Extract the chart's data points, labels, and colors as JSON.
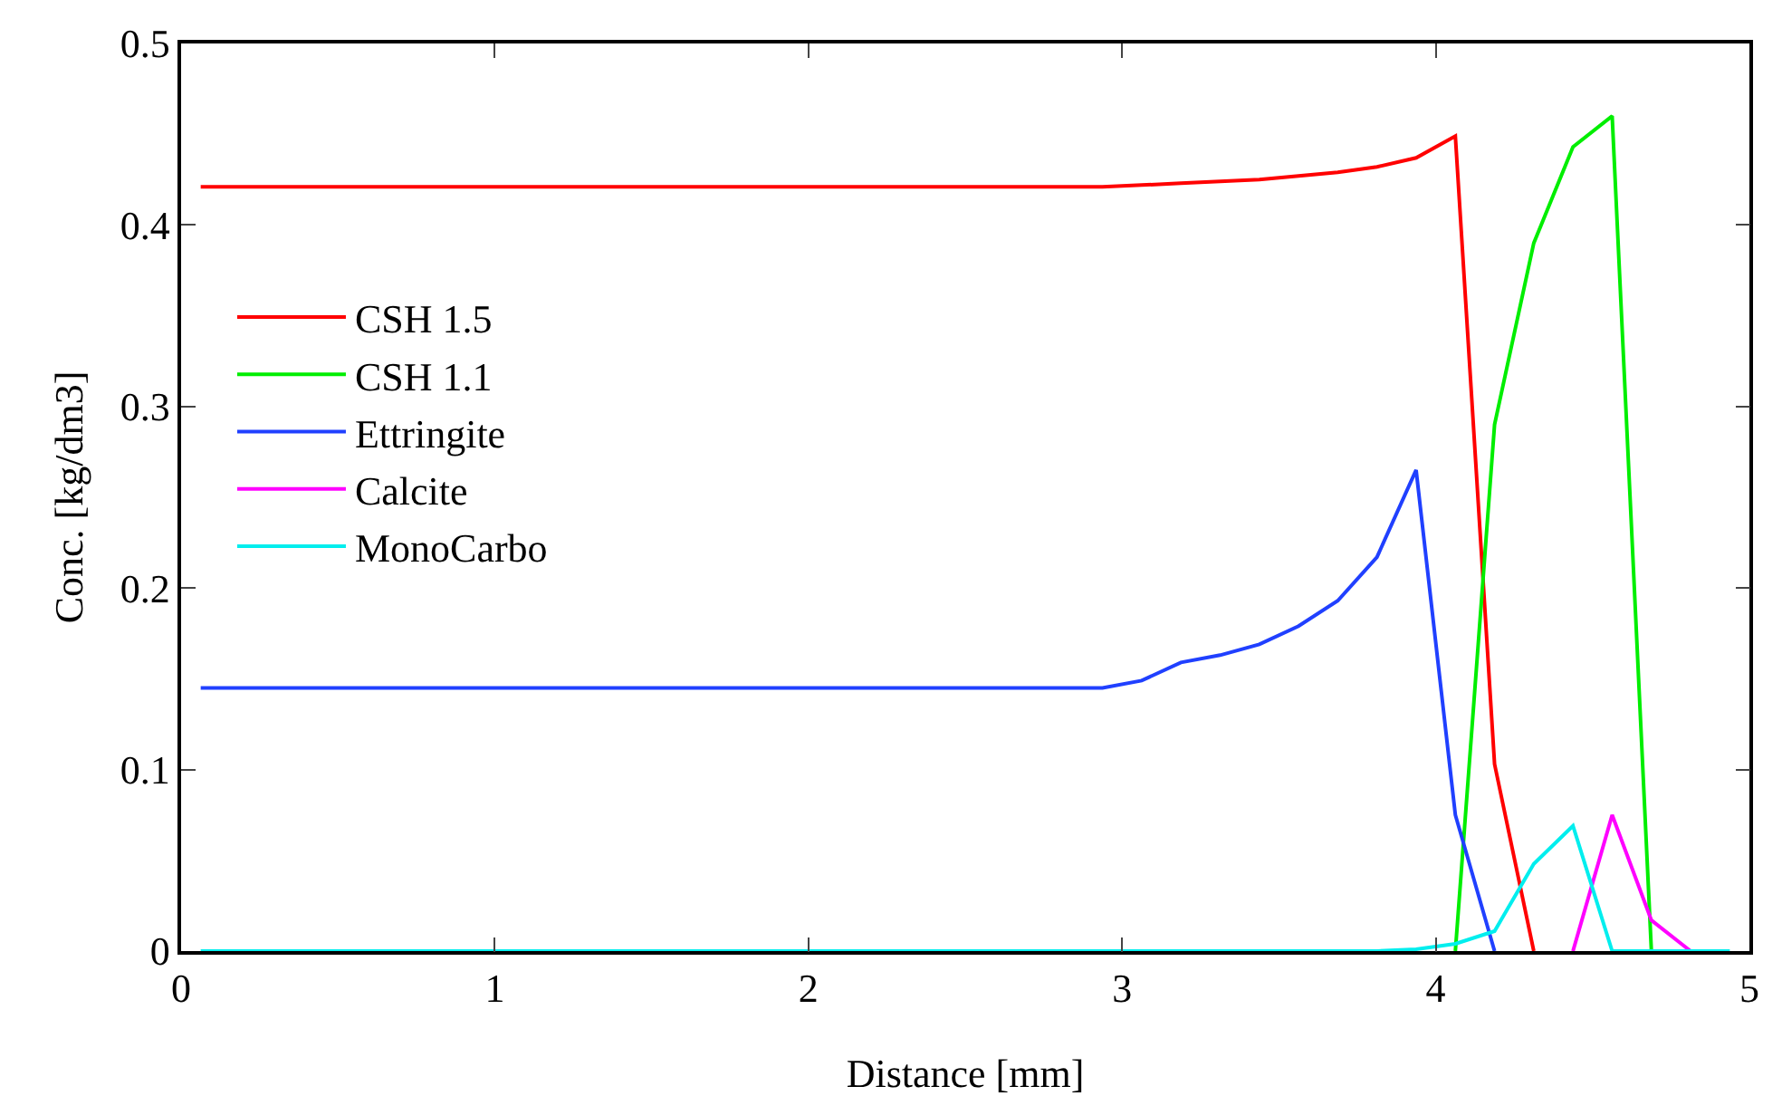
{
  "chart_data": {
    "type": "line",
    "xlabel": "Distance [mm]",
    "ylabel": "Conc. [kg/dm3]",
    "x": [
      0.0625,
      2.9375,
      3.0625,
      3.1875,
      3.3125,
      3.4375,
      3.5625,
      3.6875,
      3.8125,
      3.9375,
      4.0625,
      4.1875,
      4.3125,
      4.4375,
      4.5625,
      4.6875,
      4.8125,
      4.9375
    ],
    "series": [
      {
        "name": "CSH 1.5",
        "color": "#ff0000",
        "values": [
          0.421,
          0.421,
          0.422,
          0.423,
          0.424,
          0.425,
          0.427,
          0.429,
          0.432,
          0.437,
          0.449,
          0.103,
          0,
          null,
          null,
          null,
          null,
          null
        ]
      },
      {
        "name": "CSH 1.1",
        "color": "#00ee00",
        "values": [
          null,
          null,
          null,
          null,
          null,
          null,
          null,
          null,
          null,
          null,
          0,
          0.29,
          0.39,
          0.443,
          0.46,
          0,
          null,
          null
        ]
      },
      {
        "name": "Ettringite",
        "color": "#2040ff",
        "values": [
          0.145,
          0.145,
          0.149,
          0.159,
          0.163,
          0.169,
          0.179,
          0.193,
          0.217,
          0.265,
          0.075,
          0,
          null,
          null,
          null,
          null,
          null,
          null
        ]
      },
      {
        "name": "Calcite",
        "color": "#ff00ff",
        "values": [
          null,
          null,
          null,
          null,
          null,
          null,
          null,
          null,
          null,
          null,
          null,
          null,
          null,
          0,
          0.075,
          0.017,
          0,
          null
        ]
      },
      {
        "name": "MonoCarbo",
        "color": "#00eeee",
        "values": [
          0,
          0,
          0,
          0,
          0,
          0,
          0,
          0,
          0,
          0.001,
          0.004,
          0.011,
          0.048,
          0.069,
          0,
          0,
          0,
          0
        ]
      }
    ],
    "xlim": [
      0,
      5
    ],
    "xticks": [
      0,
      1,
      2,
      3,
      4,
      5
    ],
    "ylim": [
      0,
      0.5
    ],
    "yticks": [
      0,
      0.1,
      0.2,
      0.3,
      0.4,
      0.5
    ],
    "grid": false,
    "legend": "top left",
    "marker": "none",
    "line_style": "solid"
  }
}
